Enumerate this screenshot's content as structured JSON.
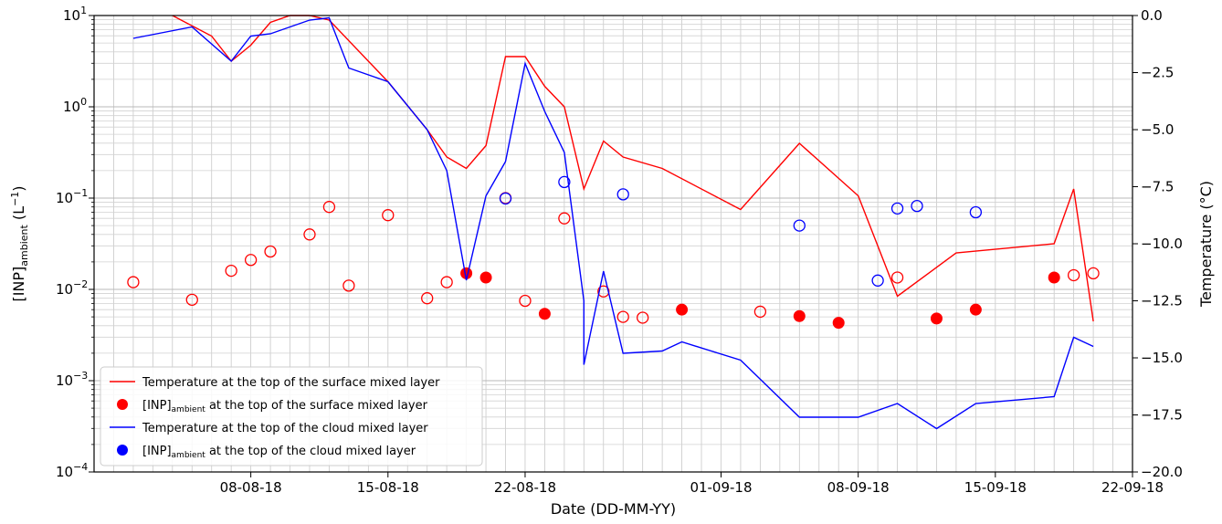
{
  "chart_data": {
    "type": "line",
    "xlabel": "Date (DD-MM-YY)",
    "ylabel_left": "[INP]ambient (L⁻¹)",
    "ylabel_right": "Temperature (°C)",
    "x_ticks": [
      "2018-08-08",
      "2018-08-15",
      "2018-08-22",
      "2018-09-01",
      "2018-09-08",
      "2018-09-15",
      "2018-09-22"
    ],
    "x_tick_labels": [
      "08-08-18",
      "15-08-18",
      "22-08-18",
      "01-09-18",
      "08-09-18",
      "15-09-18",
      "22-09-18"
    ],
    "xlim": [
      "2018-07-31",
      "2018-09-22"
    ],
    "ylim_left": [
      0.0001,
      10
    ],
    "y_scale_left": "log",
    "y_ticks_left": [
      {
        "base": "10",
        "exp": "1"
      },
      {
        "base": "10",
        "exp": "0"
      },
      {
        "base": "10",
        "exp": "−1"
      },
      {
        "base": "10",
        "exp": "−2"
      },
      {
        "base": "10",
        "exp": "−3"
      },
      {
        "base": "10",
        "exp": "−4"
      }
    ],
    "ylim_right": [
      -20,
      0
    ],
    "y_ticks_right": [
      "0.0",
      "−2.5",
      "−5.0",
      "−7.5",
      "−10.0",
      "−12.5",
      "−15.0",
      "−17.5",
      "−20.0"
    ],
    "grid": true,
    "legend_position": "lower-left",
    "series": [
      {
        "name": "Temperature at the top of the surface mixed layer",
        "kind": "line",
        "axis": "right",
        "color": "#ff0000",
        "points": [
          [
            "2018-08-04",
            0.0
          ],
          [
            "2018-08-06",
            -0.9
          ],
          [
            "2018-08-07",
            -2.0
          ],
          [
            "2018-08-08",
            -1.3
          ],
          [
            "2018-08-09",
            -0.3
          ],
          [
            "2018-08-10",
            0.0
          ],
          [
            "2018-08-11",
            0.0
          ],
          [
            "2018-08-12",
            -0.2
          ],
          [
            "2018-08-15",
            -2.9
          ],
          [
            "2018-08-17",
            -5.0
          ],
          [
            "2018-08-18",
            -6.2
          ],
          [
            "2018-08-19",
            -6.7
          ],
          [
            "2018-08-20",
            -5.7
          ],
          [
            "2018-08-21",
            -1.8
          ],
          [
            "2018-08-22",
            -1.8
          ],
          [
            "2018-08-23",
            -3.1
          ],
          [
            "2018-08-24",
            -4.0
          ],
          [
            "2018-08-25",
            -7.6
          ],
          [
            "2018-08-26",
            -5.5
          ],
          [
            "2018-08-27",
            -6.2
          ],
          [
            "2018-08-29",
            -6.7
          ],
          [
            "2018-09-02",
            -8.5
          ],
          [
            "2018-09-05",
            -5.6
          ],
          [
            "2018-09-08",
            -7.9
          ],
          [
            "2018-09-10",
            -12.3
          ],
          [
            "2018-09-13",
            -10.4
          ],
          [
            "2018-09-18",
            -10.0
          ],
          [
            "2018-09-19",
            -7.6
          ],
          [
            "2018-09-20",
            -13.4
          ]
        ]
      },
      {
        "name": "[INP]ambient at the top of the surface mixed layer",
        "kind": "scatter",
        "axis": "left",
        "color": "#ff0000",
        "points_filled": [
          [
            "2018-08-19",
            0.015
          ],
          [
            "2018-08-20",
            0.0135
          ],
          [
            "2018-08-23",
            0.0054
          ],
          [
            "2018-08-30",
            0.006
          ],
          [
            "2018-09-05",
            0.0051
          ],
          [
            "2018-09-07",
            0.0043
          ],
          [
            "2018-09-12",
            0.0048
          ],
          [
            "2018-09-14",
            0.006
          ],
          [
            "2018-09-18",
            0.0135
          ]
        ],
        "points_open": [
          [
            "2018-08-02",
            0.012
          ],
          [
            "2018-08-05",
            0.0077
          ],
          [
            "2018-08-07",
            0.016
          ],
          [
            "2018-08-08",
            0.021
          ],
          [
            "2018-08-09",
            0.026
          ],
          [
            "2018-08-11",
            0.04
          ],
          [
            "2018-08-12",
            0.08
          ],
          [
            "2018-08-13",
            0.011
          ],
          [
            "2018-08-15",
            0.065
          ],
          [
            "2018-08-17",
            0.008
          ],
          [
            "2018-08-18",
            0.012
          ],
          [
            "2018-08-21",
            0.1
          ],
          [
            "2018-08-22",
            0.0075
          ],
          [
            "2018-08-24",
            0.06
          ],
          [
            "2018-08-26",
            0.0095
          ],
          [
            "2018-08-27",
            0.005
          ],
          [
            "2018-08-28",
            0.0049
          ],
          [
            "2018-09-03",
            0.0057
          ],
          [
            "2018-09-10",
            0.0135
          ],
          [
            "2018-09-19",
            0.0143
          ],
          [
            "2018-09-20",
            0.015
          ]
        ]
      },
      {
        "name": "Temperature at the top of the cloud mixed layer",
        "kind": "line",
        "axis": "right",
        "color": "#0000ff",
        "points": [
          [
            "2018-08-02",
            -1.0
          ],
          [
            "2018-08-05",
            -0.5
          ],
          [
            "2018-08-07",
            -2.0
          ],
          [
            "2018-08-08",
            -0.9
          ],
          [
            "2018-08-09",
            -0.8
          ],
          [
            "2018-08-11",
            -0.2
          ],
          [
            "2018-08-12",
            -0.1
          ],
          [
            "2018-08-13",
            -2.3
          ],
          [
            "2018-08-15",
            -2.9
          ],
          [
            "2018-08-17",
            -5.0
          ],
          [
            "2018-08-18",
            -6.8
          ],
          [
            "2018-08-19",
            -11.6
          ],
          [
            "2018-08-20",
            -7.9
          ],
          [
            "2018-08-21",
            -6.4
          ],
          [
            "2018-08-22",
            -2.1
          ],
          [
            "2018-08-23",
            -4.2
          ],
          [
            "2018-08-24",
            -6.0
          ],
          [
            "2018-08-25",
            -12.5
          ],
          [
            "2018-08-25",
            -15.3
          ],
          [
            "2018-08-26",
            -11.2
          ],
          [
            "2018-08-27",
            -14.8
          ],
          [
            "2018-08-29",
            -14.7
          ],
          [
            "2018-08-30",
            -14.3
          ],
          [
            "2018-09-02",
            -15.1
          ],
          [
            "2018-09-05",
            -17.6
          ],
          [
            "2018-09-08",
            -17.6
          ],
          [
            "2018-09-10",
            -17.0
          ],
          [
            "2018-09-12",
            -18.1
          ],
          [
            "2018-09-14",
            -17.0
          ],
          [
            "2018-09-18",
            -16.7
          ],
          [
            "2018-09-19",
            -14.1
          ],
          [
            "2018-09-20",
            -14.5
          ]
        ]
      },
      {
        "name": "[INP]ambient at the top of the cloud mixed layer",
        "kind": "scatter",
        "axis": "left",
        "color": "#0000ff",
        "points_filled": [],
        "points_open": [
          [
            "2018-08-21",
            0.099
          ],
          [
            "2018-08-24",
            0.15
          ],
          [
            "2018-08-27",
            0.11
          ],
          [
            "2018-09-05",
            0.05
          ],
          [
            "2018-09-09",
            0.0125
          ],
          [
            "2018-09-10",
            0.077
          ],
          [
            "2018-09-11",
            0.082
          ],
          [
            "2018-09-14",
            0.07
          ]
        ]
      }
    ],
    "legend": [
      {
        "label": "Temperature at the top of the surface mixed layer",
        "symbol": "line",
        "color": "#ff0000"
      },
      {
        "label": "[INP]ambient at the top of the surface mixed layer",
        "symbol": "dot",
        "color": "#ff0000"
      },
      {
        "label": "Temperature at the top of the cloud mixed layer",
        "symbol": "line",
        "color": "#0000ff"
      },
      {
        "label": "[INP]ambient at the top of the cloud mixed layer",
        "symbol": "dot",
        "color": "#0000ff"
      }
    ]
  }
}
